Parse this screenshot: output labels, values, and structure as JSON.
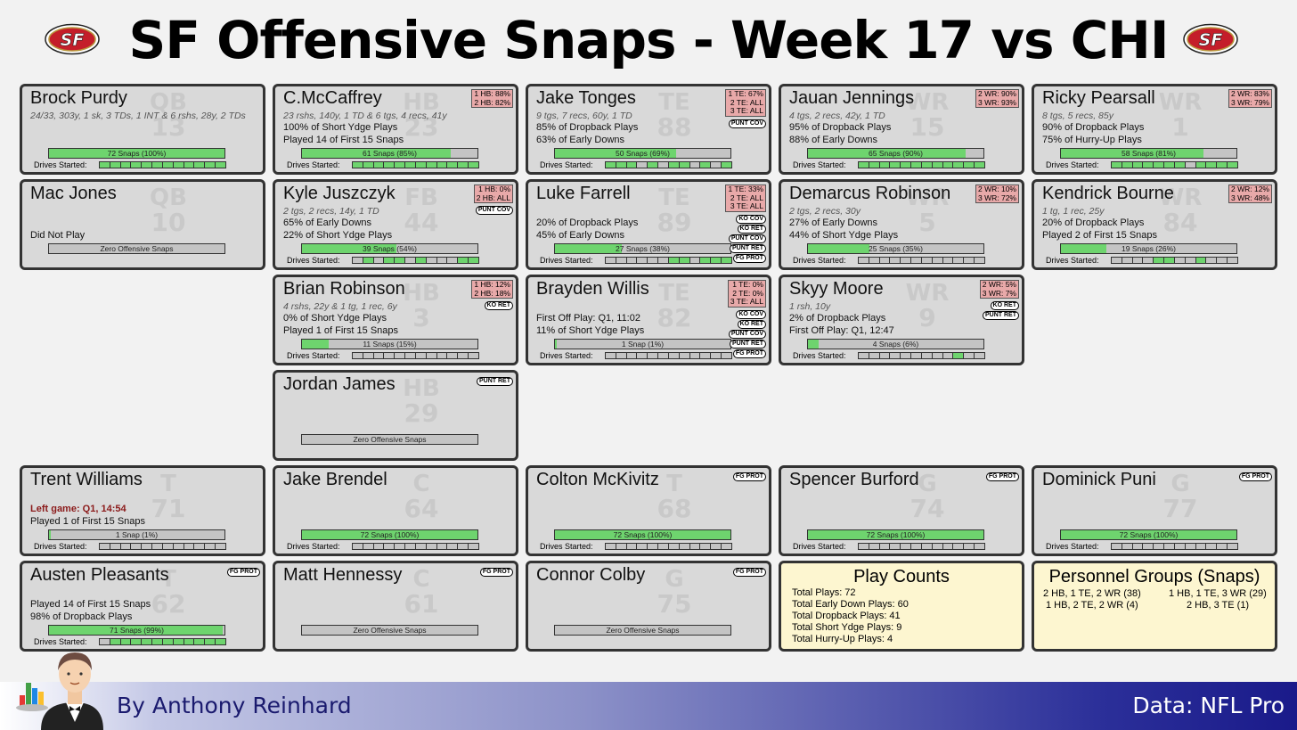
{
  "title": "SF Offensive Snaps - Week 17 vs CHI",
  "logo_text": "SF",
  "labels": {
    "drives_started": "Drives Started:"
  },
  "colors": {
    "card": "#d9d9d9",
    "summary": "#fdf6d0",
    "snap_fill": "#6ed46e",
    "pct_box": "#e8a9a9",
    "logo_red": "#c41e2a"
  },
  "cards": [
    {
      "row": 0,
      "col": 0,
      "name": "Brock Purdy",
      "pos": "QB",
      "num": "13",
      "sub": "24/33, 303y, 1 sk, 3 TDs, 1 INT & 6 rshs, 28y, 2 TDs",
      "lines": [],
      "pct": [],
      "badges": [],
      "snaps": 72,
      "snap_pct": 1.0,
      "snap_text": "72 Snaps (100%)",
      "drives": [
        1,
        1,
        1,
        1,
        1,
        1,
        1,
        1,
        1,
        1,
        1,
        1
      ]
    },
    {
      "row": 0,
      "col": 1,
      "name": "C.McCaffrey",
      "pos": "HB",
      "num": "23",
      "sub": "23 rshs, 140y, 1 TD & 6 tgs, 4 recs, 41y",
      "lines": [
        "100% of Short Ydge Plays",
        "Played 14 of First 15 Snaps"
      ],
      "pct": [
        "1 HB: 88%",
        "2 HB: 82%"
      ],
      "badges": [],
      "snaps": 61,
      "snap_pct": 0.85,
      "snap_text": "61 Snaps (85%)",
      "drives": [
        1,
        1,
        1,
        1,
        1,
        1,
        1,
        1,
        1,
        1,
        1,
        1
      ]
    },
    {
      "row": 0,
      "col": 2,
      "name": "Jake Tonges",
      "pos": "TE",
      "num": "88",
      "sub": "9 tgs, 7 recs, 60y, 1 TD",
      "lines": [
        "85% of Dropback Plays",
        "63% of Early Downs"
      ],
      "pct": [
        "1 TE: 67%",
        "2 TE: ALL",
        "3 TE: ALL"
      ],
      "badges": [
        "PUNT COV"
      ],
      "snaps": 50,
      "snap_pct": 0.69,
      "snap_text": "50 Snaps (69%)",
      "drives": [
        1,
        1,
        1,
        0,
        1,
        0,
        1,
        1,
        0,
        1,
        0,
        1
      ]
    },
    {
      "row": 0,
      "col": 3,
      "name": "Jauan Jennings",
      "pos": "WR",
      "num": "15",
      "sub": "4 tgs, 2 recs, 42y, 1 TD",
      "lines": [
        "95% of Dropback Plays",
        "88% of Early Downs"
      ],
      "pct": [
        "2 WR: 90%",
        "3 WR: 93%"
      ],
      "badges": [],
      "snaps": 65,
      "snap_pct": 0.9,
      "snap_text": "65 Snaps (90%)",
      "drives": [
        1,
        1,
        1,
        1,
        1,
        1,
        1,
        1,
        1,
        1,
        1,
        1
      ]
    },
    {
      "row": 0,
      "col": 4,
      "name": "Ricky Pearsall",
      "pos": "WR",
      "num": "1",
      "sub": "8 tgs, 5 recs, 85y",
      "lines": [
        "90% of Dropback Plays",
        "75% of Hurry-Up Plays"
      ],
      "pct": [
        "2 WR: 83%",
        "3 WR: 79%"
      ],
      "badges": [],
      "snaps": 58,
      "snap_pct": 0.81,
      "snap_text": "58 Snaps (81%)",
      "drives": [
        1,
        1,
        1,
        1,
        1,
        1,
        1,
        0,
        1,
        1,
        1,
        1
      ]
    },
    {
      "row": 1,
      "col": 0,
      "name": "Mac Jones",
      "pos": "QB",
      "num": "10",
      "sub": "",
      "lines": [
        "",
        "Did Not Play"
      ],
      "pct": [],
      "badges": [],
      "snaps": 0,
      "snap_pct": 0,
      "snap_text": "Zero Offensive Snaps",
      "drives": []
    },
    {
      "row": 1,
      "col": 1,
      "name": "Kyle Juszczyk",
      "pos": "FB",
      "num": "44",
      "sub": "2 tgs, 2 recs, 14y, 1 TD",
      "lines": [
        "65% of Early Downs",
        "22% of Short Ydge Plays"
      ],
      "pct": [
        "1 HB: 0%",
        "2 HB: ALL"
      ],
      "badges": [
        "PUNT COV"
      ],
      "snaps": 39,
      "snap_pct": 0.54,
      "snap_text": "39 Snaps (54%)",
      "drives": [
        0,
        1,
        0,
        1,
        1,
        0,
        1,
        0,
        0,
        0,
        1,
        1
      ]
    },
    {
      "row": 1,
      "col": 2,
      "name": "Luke Farrell",
      "pos": "TE",
      "num": "89",
      "sub": "",
      "lines": [
        "20% of Dropback Plays",
        "45% of Early Downs"
      ],
      "pct": [
        "1 TE: 33%",
        "2 TE: ALL",
        "3 TE: ALL"
      ],
      "badges": [
        "KO COV",
        "KO RET",
        "PUNT COV",
        "PUNT RET",
        "FG PROT"
      ],
      "snaps": 27,
      "snap_pct": 0.38,
      "snap_text": "27 Snaps (38%)",
      "drives": [
        0,
        0,
        0,
        0,
        0,
        0,
        1,
        1,
        0,
        1,
        1,
        1
      ]
    },
    {
      "row": 1,
      "col": 3,
      "name": "Demarcus Robinson",
      "pos": "WR",
      "num": "5",
      "sub": "2 tgs, 2 recs, 30y",
      "lines": [
        "27% of Early Downs",
        "44% of Short Ydge Plays"
      ],
      "pct": [
        "2 WR: 10%",
        "3 WR: 72%"
      ],
      "badges": [],
      "snaps": 25,
      "snap_pct": 0.35,
      "snap_text": "25 Snaps (35%)",
      "drives": [
        0,
        0,
        0,
        0,
        0,
        0,
        0,
        0,
        0,
        0,
        0,
        0
      ]
    },
    {
      "row": 1,
      "col": 4,
      "name": "Kendrick Bourne",
      "pos": "WR",
      "num": "84",
      "sub": "1 tg, 1 rec, 25y",
      "lines": [
        "20% of Dropback Plays",
        "Played 2 of First 15 Snaps"
      ],
      "pct": [
        "2 WR: 12%",
        "3 WR: 48%"
      ],
      "badges": [],
      "snaps": 19,
      "snap_pct": 0.26,
      "snap_text": "19 Snaps (26%)",
      "drives": [
        0,
        0,
        0,
        0,
        1,
        1,
        0,
        0,
        1,
        0,
        0,
        0
      ]
    },
    {
      "row": 2,
      "col": 1,
      "name": "Brian Robinson",
      "pos": "HB",
      "num": "3",
      "sub": "4 rshs, 22y & 1 tg, 1 rec, 6y",
      "lines": [
        "0% of Short Ydge Plays",
        "Played 1 of First 15 Snaps"
      ],
      "pct": [
        "1 HB: 12%",
        "2 HB: 18%"
      ],
      "badges": [
        "KO RET"
      ],
      "snaps": 11,
      "snap_pct": 0.15,
      "snap_text": "11 Snaps (15%)",
      "drives": [
        0,
        0,
        0,
        0,
        0,
        0,
        0,
        0,
        0,
        0,
        0,
        0
      ]
    },
    {
      "row": 2,
      "col": 2,
      "name": "Brayden Willis",
      "pos": "TE",
      "num": "82",
      "sub": "",
      "lines": [
        "First Off Play: Q1, 11:02",
        "11% of Short Ydge Plays"
      ],
      "pct": [
        "1 TE: 0%",
        "2 TE: 0%",
        "3 TE: ALL"
      ],
      "badges": [
        "KO COV",
        "KO RET",
        "PUNT COV",
        "PUNT RET",
        "FG PROT"
      ],
      "snaps": 1,
      "snap_pct": 0.01,
      "snap_text": "1 Snap (1%)",
      "drives": [
        0,
        0,
        0,
        0,
        0,
        0,
        0,
        0,
        0,
        0,
        0,
        0
      ]
    },
    {
      "row": 2,
      "col": 3,
      "name": "Skyy Moore",
      "pos": "WR",
      "num": "9",
      "sub": "1 rsh, 10y",
      "lines": [
        "2% of Dropback Plays",
        "First Off Play: Q1, 12:47"
      ],
      "pct": [
        "2 WR: 5%",
        "3 WR: 7%"
      ],
      "badges": [
        "KO RET",
        "PUNT RET"
      ],
      "snaps": 4,
      "snap_pct": 0.06,
      "snap_text": "4 Snaps (6%)",
      "drives": [
        0,
        0,
        0,
        0,
        0,
        0,
        0,
        0,
        0,
        1,
        0,
        0
      ]
    },
    {
      "row": 3,
      "col": 1,
      "name": "Jordan James",
      "pos": "HB",
      "num": "29",
      "sub": "",
      "lines": [],
      "pct": [],
      "badges": [
        "PUNT RET"
      ],
      "snaps": 0,
      "snap_pct": 0,
      "snap_text": "Zero Offensive Snaps",
      "drives": []
    },
    {
      "row": 4,
      "col": 0,
      "name": "Trent Williams",
      "pos": "T",
      "num": "71",
      "sub": "",
      "lines": [
        "Left game: Q1, 14:54",
        "Played 1 of First 15 Snaps"
      ],
      "red_line": 0,
      "pct": [],
      "badges": [],
      "snaps": 1,
      "snap_pct": 0.01,
      "snap_text": "1 Snap (1%)",
      "drives": [
        0,
        0,
        0,
        0,
        0,
        0,
        0,
        0,
        0,
        0,
        0,
        0
      ]
    },
    {
      "row": 4,
      "col": 1,
      "name": "Jake Brendel",
      "pos": "C",
      "num": "64",
      "sub": "",
      "lines": [],
      "pct": [],
      "badges": [],
      "snaps": 72,
      "snap_pct": 1.0,
      "snap_text": "72 Snaps (100%)",
      "drives": [
        0,
        0,
        0,
        0,
        0,
        0,
        0,
        0,
        0,
        0,
        0,
        0
      ]
    },
    {
      "row": 4,
      "col": 2,
      "name": "Colton McKivitz",
      "pos": "T",
      "num": "68",
      "sub": "",
      "lines": [],
      "pct": [],
      "badges": [
        "FG PROT"
      ],
      "snaps": 72,
      "snap_pct": 1.0,
      "snap_text": "72 Snaps (100%)",
      "drives": [
        0,
        0,
        0,
        0,
        0,
        0,
        0,
        0,
        0,
        0,
        0,
        0
      ]
    },
    {
      "row": 4,
      "col": 3,
      "name": "Spencer Burford",
      "pos": "G",
      "num": "74",
      "sub": "",
      "lines": [],
      "pct": [],
      "badges": [
        "FG PROT"
      ],
      "snaps": 72,
      "snap_pct": 1.0,
      "snap_text": "72 Snaps (100%)",
      "drives": [
        0,
        0,
        0,
        0,
        0,
        0,
        0,
        0,
        0,
        0,
        0,
        0
      ]
    },
    {
      "row": 4,
      "col": 4,
      "name": "Dominick Puni",
      "pos": "G",
      "num": "77",
      "sub": "",
      "lines": [],
      "pct": [],
      "badges": [
        "FG PROT"
      ],
      "snaps": 72,
      "snap_pct": 1.0,
      "snap_text": "72 Snaps (100%)",
      "drives": [
        0,
        0,
        0,
        0,
        0,
        0,
        0,
        0,
        0,
        0,
        0,
        0
      ]
    },
    {
      "row": 5,
      "col": 0,
      "name": "Austen Pleasants",
      "pos": "T",
      "num": "62",
      "sub": "",
      "lines": [
        "Played 14 of First 15 Snaps",
        "98% of Dropback Plays"
      ],
      "pct": [],
      "badges": [
        "FG PROT"
      ],
      "snaps": 71,
      "snap_pct": 0.99,
      "snap_text": "71 Snaps (99%)",
      "drives": [
        0,
        1,
        1,
        1,
        1,
        1,
        1,
        1,
        1,
        1,
        1,
        1
      ]
    },
    {
      "row": 5,
      "col": 1,
      "name": "Matt Hennessy",
      "pos": "C",
      "num": "61",
      "sub": "",
      "lines": [],
      "pct": [],
      "badges": [
        "FG PROT"
      ],
      "snaps": 0,
      "snap_pct": 0,
      "snap_text": "Zero Offensive Snaps",
      "drives": []
    },
    {
      "row": 5,
      "col": 2,
      "name": "Connor Colby",
      "pos": "G",
      "num": "75",
      "sub": "",
      "lines": [],
      "pct": [],
      "badges": [
        "FG PROT"
      ],
      "snaps": 0,
      "snap_pct": 0,
      "snap_text": "Zero Offensive Snaps",
      "drives": []
    }
  ],
  "play_counts": {
    "title": "Play Counts",
    "lines": [
      "Total Plays: 72",
      "Total Early Down Plays: 60",
      "Total Dropback Plays: 41",
      "Total Short Ydge Plays: 9",
      "Total Hurry-Up Plays: 4"
    ]
  },
  "personnel": {
    "title": "Personnel Groups (Snaps)",
    "groups": [
      "2 HB, 1 TE, 2 WR (38)",
      "1 HB, 1 TE, 3 WR (29)",
      "1 HB, 2 TE, 2 WR (4)",
      "2 HB, 3 TE (1)"
    ]
  },
  "footer": {
    "byline": "By Anthony Reinhard",
    "source": "Data: NFL Pro"
  }
}
